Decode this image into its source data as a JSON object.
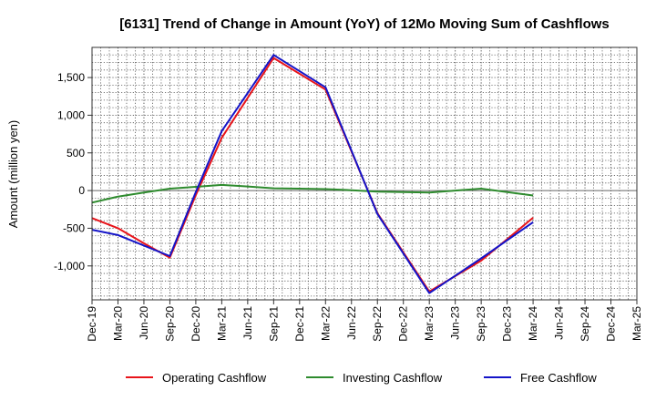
{
  "chart_data": {
    "type": "line",
    "title": "[6131]  Trend of Change in Amount (YoY) of 12Mo Moving Sum of Cashflows",
    "xlabel": "",
    "ylabel": "Amount (million yen)",
    "ylim": [
      -1450,
      1900
    ],
    "yticks": [
      -1000,
      -500,
      0,
      500,
      1000,
      1500
    ],
    "ytick_labels": [
      "-1,000",
      "-500",
      "0",
      "500",
      "1,000",
      "1,500"
    ],
    "grid": true,
    "legend_position": "bottom",
    "categories": [
      "Dec-19",
      "Mar-20",
      "Jun-20",
      "Sep-20",
      "Dec-20",
      "Mar-21",
      "Jun-21",
      "Sep-21",
      "Dec-21",
      "Mar-22",
      "Jun-22",
      "Sep-22",
      "Dec-22",
      "Mar-23",
      "Jun-23",
      "Sep-23",
      "Dec-23",
      "Mar-24",
      "Jun-24",
      "Sep-24",
      "Dec-24",
      "Mar-25"
    ],
    "series": [
      {
        "name": "Operating Cashflow",
        "color": "#e8141a",
        "values": [
          -365,
          -500,
          -700,
          -890,
          -60,
          700,
          null,
          1760,
          null,
          1340,
          null,
          -300,
          null,
          -1340,
          null,
          -930,
          null,
          -360,
          null,
          null,
          null,
          null
        ]
      },
      {
        "name": "Investing Cashflow",
        "color": "#2e8b2e",
        "values": [
          -160,
          -80,
          -25,
          25,
          50,
          75,
          55,
          30,
          25,
          20,
          5,
          -15,
          -20,
          -25,
          0,
          25,
          -20,
          -65,
          null,
          null,
          null,
          null
        ]
      },
      {
        "name": "Free Cashflow",
        "color": "#1414c8",
        "values": [
          -520,
          -590,
          null,
          -870,
          -20,
          790,
          null,
          1800,
          null,
          1370,
          null,
          -310,
          null,
          -1360,
          null,
          -900,
          null,
          -420,
          null,
          null,
          null,
          null
        ]
      }
    ]
  }
}
